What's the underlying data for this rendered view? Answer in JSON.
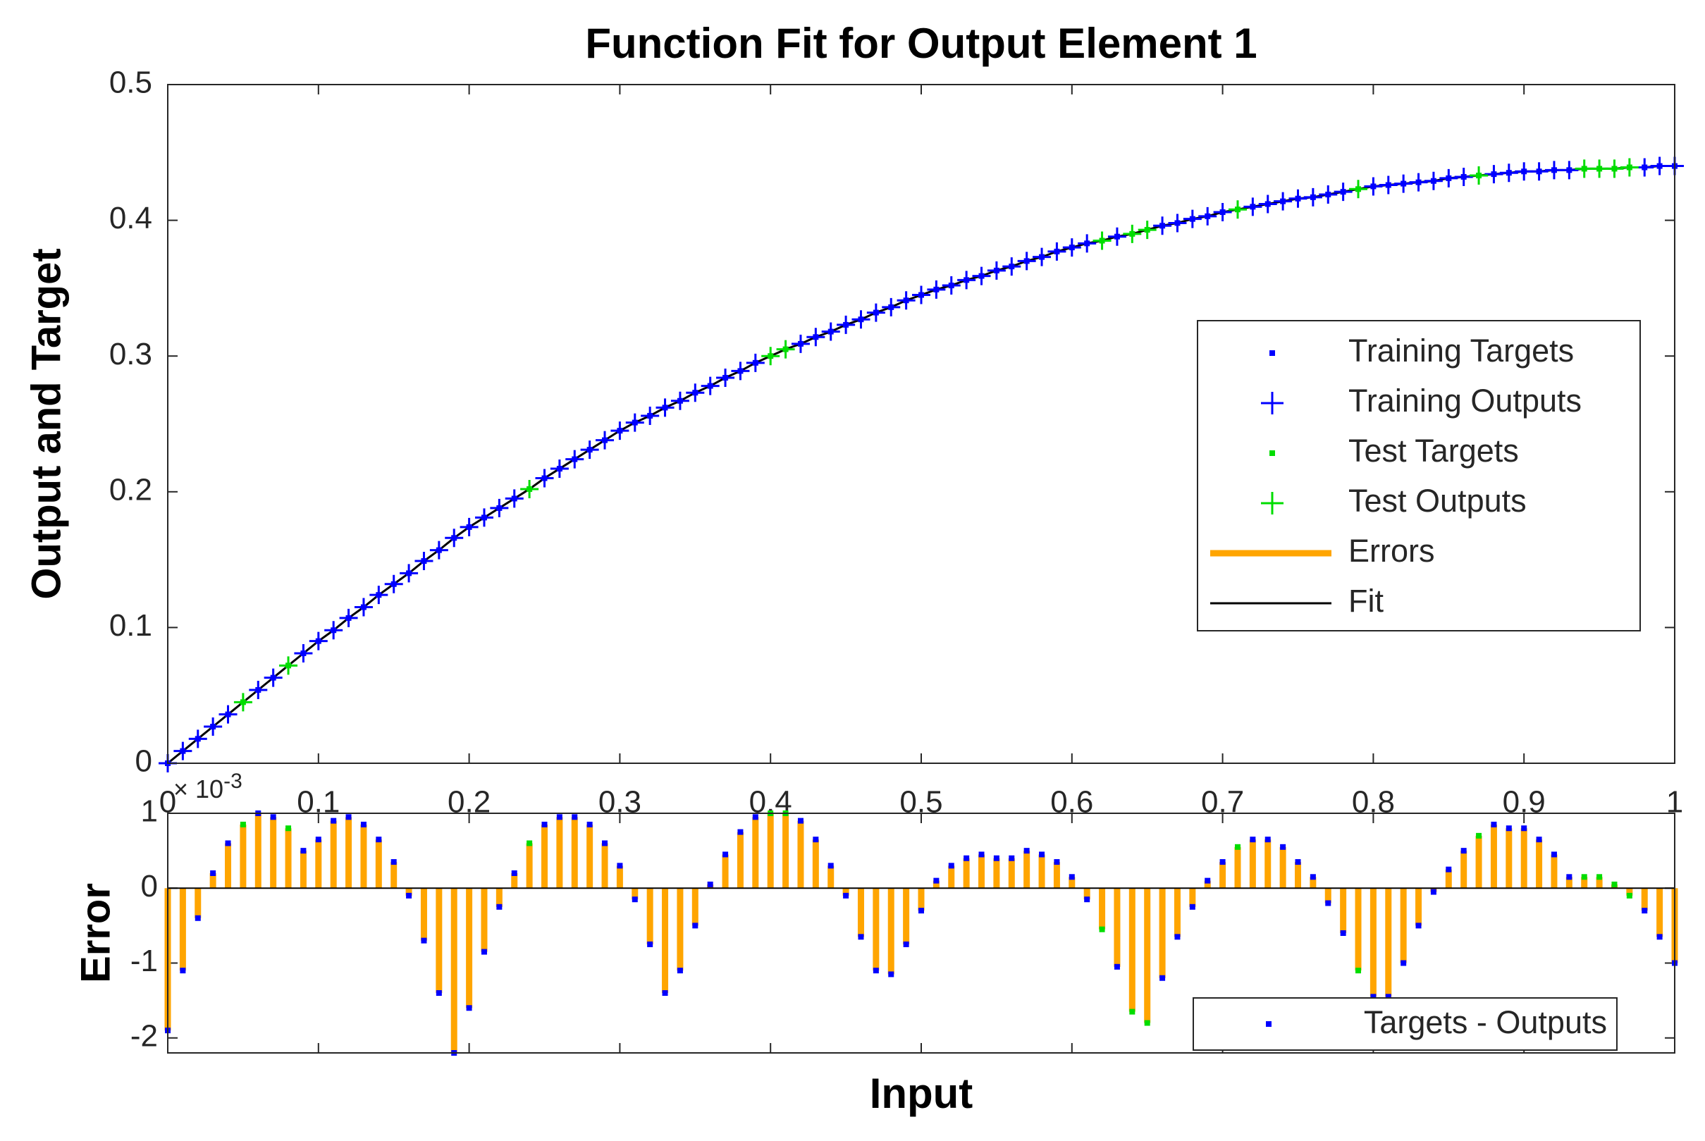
{
  "chart_data": [
    {
      "type": "line",
      "title": "Function Fit for Output Element 1",
      "ylabel": "Output and Target",
      "xlim": [
        0,
        1
      ],
      "xticks": [
        0,
        0.1,
        0.2,
        0.3,
        0.4,
        0.5,
        0.6,
        0.7,
        0.8,
        0.9,
        1
      ],
      "ylim": [
        0,
        0.5
      ],
      "yticks": [
        0,
        0.1,
        0.2,
        0.3,
        0.4,
        0.5
      ],
      "legend": "east",
      "x": [
        0,
        0.01,
        0.02,
        0.03,
        0.04,
        0.05,
        0.06,
        0.07,
        0.08,
        0.09,
        0.1,
        0.11,
        0.12,
        0.13,
        0.14,
        0.15,
        0.16,
        0.17,
        0.18,
        0.19,
        0.2,
        0.21,
        0.22,
        0.23,
        0.24,
        0.25,
        0.26,
        0.27,
        0.28,
        0.29,
        0.3,
        0.31,
        0.32,
        0.33,
        0.34,
        0.35,
        0.36,
        0.37,
        0.38,
        0.39,
        0.4,
        0.41,
        0.42,
        0.43,
        0.44,
        0.45,
        0.46,
        0.47,
        0.48,
        0.49,
        0.5,
        0.51,
        0.52,
        0.53,
        0.54,
        0.55,
        0.56,
        0.57,
        0.58,
        0.59,
        0.6,
        0.61,
        0.62,
        0.63,
        0.64,
        0.65,
        0.66,
        0.67,
        0.68,
        0.69,
        0.7,
        0.71,
        0.72,
        0.73,
        0.74,
        0.75,
        0.76,
        0.77,
        0.78,
        0.79,
        0.8,
        0.81,
        0.82,
        0.83,
        0.84,
        0.85,
        0.86,
        0.87,
        0.88,
        0.89,
        0.9,
        0.91,
        0.92,
        0.93,
        0.94,
        0.95,
        0.96,
        0.97,
        0.98,
        0.99,
        1
      ],
      "series": [
        {
          "name": "Training Targets",
          "style": "dot",
          "color": "#0000ff",
          "values": [
            0,
            0.009,
            0.018,
            0.027,
            0.036,
            null,
            0.054,
            0.063,
            null,
            0.081,
            0.09,
            0.098,
            0.107,
            0.115,
            0.124,
            0.132,
            0.14,
            0.149,
            0.157,
            0.166,
            0.174,
            0.181,
            0.188,
            0.195,
            null,
            0.21,
            0.217,
            0.224,
            0.231,
            0.238,
            0.245,
            0.251,
            0.256,
            0.262,
            0.267,
            0.273,
            0.278,
            0.284,
            0.289,
            0.295,
            null,
            null,
            0.309,
            0.314,
            0.318,
            0.323,
            0.327,
            0.332,
            0.336,
            0.341,
            0.345,
            0.349,
            0.352,
            0.356,
            0.359,
            0.363,
            0.366,
            0.37,
            0.373,
            0.377,
            0.38,
            0.383,
            null,
            0.388,
            null,
            null,
            0.396,
            0.398,
            0.401,
            0.403,
            0.406,
            null,
            0.41,
            0.412,
            0.414,
            0.416,
            0.417,
            0.419,
            0.421,
            null,
            0.425,
            0.426,
            0.427,
            0.428,
            0.429,
            0.431,
            0.432,
            null,
            0.434,
            0.435,
            0.436,
            0.436,
            0.437,
            0.437,
            null,
            null,
            null,
            null,
            0.439,
            0.44,
            0.44
          ]
        },
        {
          "name": "Training Outputs",
          "style": "plus",
          "color": "#0000ff",
          "values": [
            0,
            0.009,
            0.018,
            0.027,
            0.036,
            null,
            0.054,
            0.063,
            null,
            0.081,
            0.09,
            0.098,
            0.107,
            0.115,
            0.124,
            0.132,
            0.14,
            0.149,
            0.157,
            0.166,
            0.174,
            0.181,
            0.188,
            0.195,
            null,
            0.21,
            0.217,
            0.224,
            0.231,
            0.238,
            0.245,
            0.251,
            0.256,
            0.262,
            0.267,
            0.273,
            0.278,
            0.284,
            0.289,
            0.295,
            null,
            null,
            0.309,
            0.314,
            0.318,
            0.323,
            0.327,
            0.332,
            0.336,
            0.341,
            0.345,
            0.349,
            0.352,
            0.356,
            0.359,
            0.363,
            0.366,
            0.37,
            0.373,
            0.377,
            0.38,
            0.383,
            null,
            0.388,
            null,
            null,
            0.396,
            0.398,
            0.401,
            0.403,
            0.406,
            null,
            0.41,
            0.412,
            0.414,
            0.416,
            0.417,
            0.419,
            0.421,
            null,
            0.425,
            0.426,
            0.427,
            0.428,
            0.429,
            0.431,
            0.432,
            null,
            0.434,
            0.435,
            0.436,
            0.436,
            0.437,
            0.437,
            null,
            null,
            null,
            null,
            0.439,
            0.44,
            0.44
          ]
        },
        {
          "name": "Test Targets",
          "style": "dot",
          "color": "#00dd00",
          "values": [
            null,
            null,
            null,
            null,
            null,
            0.045,
            null,
            null,
            0.072,
            null,
            null,
            null,
            null,
            null,
            null,
            null,
            null,
            null,
            null,
            null,
            null,
            null,
            null,
            null,
            0.202,
            null,
            null,
            null,
            null,
            null,
            null,
            null,
            null,
            null,
            null,
            null,
            null,
            null,
            null,
            null,
            0.3,
            0.305,
            null,
            null,
            null,
            null,
            null,
            null,
            null,
            null,
            null,
            null,
            null,
            null,
            null,
            null,
            null,
            null,
            null,
            null,
            null,
            null,
            0.385,
            null,
            0.39,
            0.393,
            null,
            null,
            null,
            null,
            null,
            0.408,
            null,
            null,
            null,
            null,
            null,
            null,
            null,
            0.423,
            null,
            null,
            null,
            null,
            null,
            null,
            null,
            0.433,
            null,
            null,
            null,
            null,
            null,
            null,
            0.438,
            0.438,
            0.438,
            0.439,
            null,
            null,
            null
          ]
        },
        {
          "name": "Test Outputs",
          "style": "plus",
          "color": "#00dd00",
          "values": [
            null,
            null,
            null,
            null,
            null,
            0.045,
            null,
            null,
            0.072,
            null,
            null,
            null,
            null,
            null,
            null,
            null,
            null,
            null,
            null,
            null,
            null,
            null,
            null,
            null,
            0.202,
            null,
            null,
            null,
            null,
            null,
            null,
            null,
            null,
            null,
            null,
            null,
            null,
            null,
            null,
            null,
            0.3,
            0.305,
            null,
            null,
            null,
            null,
            null,
            null,
            null,
            null,
            null,
            null,
            null,
            null,
            null,
            null,
            null,
            null,
            null,
            null,
            null,
            null,
            0.385,
            null,
            0.39,
            0.393,
            null,
            null,
            null,
            null,
            null,
            0.408,
            null,
            null,
            null,
            null,
            null,
            null,
            null,
            0.423,
            null,
            null,
            null,
            null,
            null,
            null,
            null,
            0.433,
            null,
            null,
            null,
            null,
            null,
            null,
            0.438,
            0.438,
            0.438,
            0.439,
            null,
            null,
            null
          ]
        },
        {
          "name": "Errors",
          "style": "stem",
          "color": "#ffa500"
        },
        {
          "name": "Fit",
          "style": "line",
          "color": "#000000",
          "values": [
            0,
            0.009,
            0.018,
            0.027,
            0.036,
            0.045,
            0.054,
            0.063,
            0.072,
            0.081,
            0.09,
            0.098,
            0.107,
            0.115,
            0.124,
            0.132,
            0.14,
            0.149,
            0.157,
            0.166,
            0.174,
            0.181,
            0.188,
            0.195,
            0.202,
            0.21,
            0.217,
            0.224,
            0.231,
            0.238,
            0.245,
            0.251,
            0.256,
            0.262,
            0.267,
            0.273,
            0.278,
            0.284,
            0.289,
            0.295,
            0.3,
            0.305,
            0.309,
            0.314,
            0.318,
            0.323,
            0.327,
            0.332,
            0.336,
            0.341,
            0.345,
            0.349,
            0.352,
            0.356,
            0.359,
            0.363,
            0.366,
            0.37,
            0.373,
            0.377,
            0.38,
            0.383,
            0.385,
            0.388,
            0.39,
            0.393,
            0.396,
            0.398,
            0.401,
            0.403,
            0.406,
            0.408,
            0.41,
            0.412,
            0.414,
            0.416,
            0.417,
            0.419,
            0.421,
            0.423,
            0.425,
            0.426,
            0.427,
            0.428,
            0.429,
            0.431,
            0.432,
            0.433,
            0.434,
            0.435,
            0.436,
            0.436,
            0.437,
            0.437,
            0.438,
            0.438,
            0.438,
            0.439,
            0.439,
            0.44,
            0.44
          ]
        }
      ]
    },
    {
      "type": "stem",
      "ylabel": "Error",
      "xlabel": "Input",
      "y_exponent_label": {
        "base": "× 10",
        "power": "-3"
      },
      "xlim": [
        0,
        1
      ],
      "xticks": [
        0,
        0.1,
        0.2,
        0.3,
        0.4,
        0.5,
        0.6,
        0.7,
        0.8,
        0.9,
        1
      ],
      "xtick_labels": false,
      "ylim": [
        -2.2,
        1
      ],
      "yticks": [
        -2,
        -1,
        0,
        1
      ],
      "legend": "southeast",
      "stem_color": "#ffa500",
      "x": [
        0,
        0.01,
        0.02,
        0.03,
        0.04,
        0.05,
        0.06,
        0.07,
        0.08,
        0.09,
        0.1,
        0.11,
        0.12,
        0.13,
        0.14,
        0.15,
        0.16,
        0.17,
        0.18,
        0.19,
        0.2,
        0.21,
        0.22,
        0.23,
        0.24,
        0.25,
        0.26,
        0.27,
        0.28,
        0.29,
        0.3,
        0.31,
        0.32,
        0.33,
        0.34,
        0.35,
        0.36,
        0.37,
        0.38,
        0.39,
        0.4,
        0.41,
        0.42,
        0.43,
        0.44,
        0.45,
        0.46,
        0.47,
        0.48,
        0.49,
        0.5,
        0.51,
        0.52,
        0.53,
        0.54,
        0.55,
        0.56,
        0.57,
        0.58,
        0.59,
        0.6,
        0.61,
        0.62,
        0.63,
        0.64,
        0.65,
        0.66,
        0.67,
        0.68,
        0.69,
        0.7,
        0.71,
        0.72,
        0.73,
        0.74,
        0.75,
        0.76,
        0.77,
        0.78,
        0.79,
        0.8,
        0.81,
        0.82,
        0.83,
        0.84,
        0.85,
        0.86,
        0.87,
        0.88,
        0.89,
        0.9,
        0.91,
        0.92,
        0.93,
        0.94,
        0.95,
        0.96,
        0.97,
        0.98,
        0.99,
        1
      ],
      "series": [
        {
          "name": "Targets - Outputs",
          "style": "dot",
          "color": "#0000ff",
          "values": [
            -1.9,
            -1.1,
            -0.4,
            0.2,
            0.6,
            null,
            1.0,
            0.95,
            null,
            0.5,
            0.65,
            0.9,
            0.95,
            0.85,
            0.65,
            0.35,
            -0.1,
            -0.7,
            -1.4,
            -2.2,
            -1.6,
            -0.85,
            -0.25,
            0.2,
            null,
            0.85,
            0.95,
            0.95,
            0.85,
            0.6,
            0.3,
            -0.15,
            -0.75,
            -1.4,
            -1.1,
            -0.5,
            0.05,
            0.45,
            0.75,
            0.95,
            null,
            null,
            0.9,
            0.65,
            0.3,
            -0.1,
            -0.65,
            -1.1,
            -1.15,
            -0.75,
            -0.3,
            0.1,
            0.3,
            0.4,
            0.45,
            0.4,
            0.4,
            0.5,
            0.45,
            0.35,
            0.15,
            -0.15,
            null,
            -1.05,
            null,
            null,
            -1.2,
            -0.65,
            -0.25,
            0.1,
            0.35,
            null,
            0.65,
            0.65,
            0.55,
            0.35,
            0.15,
            -0.2,
            -0.6,
            null,
            -1.45,
            -1.45,
            -1.0,
            -0.5,
            -0.05,
            0.25,
            0.5,
            null,
            0.85,
            0.8,
            0.8,
            0.65,
            0.45,
            0.15,
            null,
            null,
            null,
            null,
            -0.3,
            -0.65,
            -1.0
          ]
        },
        {
          "style": "dot",
          "color": "#00dd00",
          "values": [
            null,
            null,
            null,
            null,
            null,
            0.85,
            null,
            null,
            0.8,
            null,
            null,
            null,
            null,
            null,
            null,
            null,
            null,
            null,
            null,
            null,
            null,
            null,
            null,
            null,
            0.6,
            null,
            null,
            null,
            null,
            null,
            null,
            null,
            null,
            null,
            null,
            null,
            null,
            null,
            null,
            null,
            1.0,
            1.0,
            null,
            null,
            null,
            null,
            null,
            null,
            null,
            null,
            null,
            null,
            null,
            null,
            null,
            null,
            null,
            null,
            null,
            null,
            null,
            null,
            -0.55,
            null,
            -1.65,
            -1.8,
            null,
            null,
            null,
            null,
            null,
            0.55,
            null,
            null,
            null,
            null,
            null,
            null,
            null,
            -1.1,
            null,
            null,
            null,
            null,
            null,
            null,
            null,
            0.7,
            null,
            null,
            null,
            null,
            null,
            null,
            0.15,
            0.15,
            0.05,
            -0.1,
            null,
            null,
            null
          ]
        }
      ]
    }
  ]
}
